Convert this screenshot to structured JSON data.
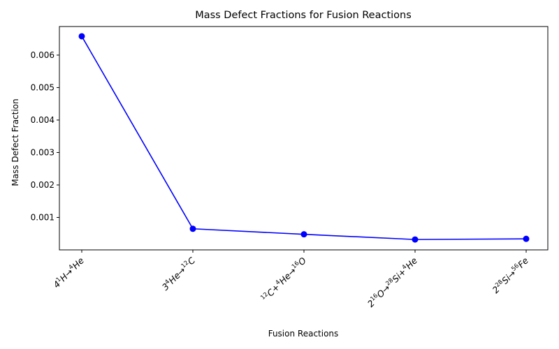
{
  "chart_data": {
    "type": "line",
    "title": "Mass Defect Fractions for Fusion Reactions",
    "xlabel": "Fusion Reactions",
    "ylabel": "Mass Defect Fraction",
    "categories": [
      "4¹H→⁴He",
      "3⁴He→¹²C",
      "¹²C+⁴He→¹⁶O",
      "2¹⁶O→²⁸Si+⁴He",
      "2²⁸Si→⁵⁶Fe"
    ],
    "category_parts": [
      [
        {
          "t": "4"
        },
        {
          "t": "1",
          "s": "up"
        },
        {
          "t": "H→"
        },
        {
          "t": "4",
          "s": "up"
        },
        {
          "t": "He"
        }
      ],
      [
        {
          "t": "3"
        },
        {
          "t": "4",
          "s": "up"
        },
        {
          "t": "He→"
        },
        {
          "t": "12",
          "s": "up"
        },
        {
          "t": "C"
        }
      ],
      [
        {
          "t": "12",
          "s": "up"
        },
        {
          "t": "C+"
        },
        {
          "t": "4",
          "s": "up"
        },
        {
          "t": "He→"
        },
        {
          "t": "16",
          "s": "up"
        },
        {
          "t": "O"
        }
      ],
      [
        {
          "t": "2"
        },
        {
          "t": "16",
          "s": "up"
        },
        {
          "t": "O→"
        },
        {
          "t": "28",
          "s": "up"
        },
        {
          "t": "Si+"
        },
        {
          "t": "4",
          "s": "up"
        },
        {
          "t": "He"
        }
      ],
      [
        {
          "t": "2"
        },
        {
          "t": "28",
          "s": "up"
        },
        {
          "t": "Si→"
        },
        {
          "t": "56",
          "s": "up"
        },
        {
          "t": "Fe"
        }
      ]
    ],
    "values": [
      0.00658,
      0.00065,
      0.00048,
      0.00032,
      0.00034
    ],
    "ylim": [
      0.0,
      0.00688
    ],
    "yticks": [
      0.001,
      0.002,
      0.003,
      0.004,
      0.005,
      0.006
    ],
    "ytick_labels": [
      "0.001",
      "0.002",
      "0.003",
      "0.004",
      "0.005",
      "0.006"
    ],
    "grid": false,
    "line_color": "#0000ff",
    "marker_color": "#0000ff"
  }
}
